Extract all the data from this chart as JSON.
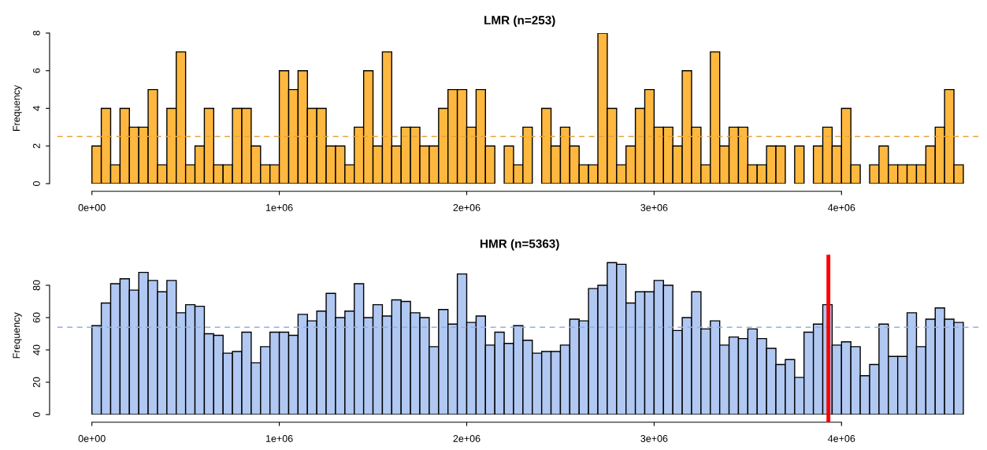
{
  "chart_data": [
    {
      "type": "histogram",
      "title": "LMR (n=253)",
      "ylabel": "Frequency",
      "bins": [
        0,
        50000,
        100000,
        150000,
        200000,
        250000,
        300000,
        350000,
        400000,
        450000,
        500000,
        550000,
        600000,
        650000,
        700000,
        750000,
        800000,
        850000,
        900000,
        950000,
        1000000,
        1050000,
        1100000,
        1150000,
        1200000,
        1250000,
        1300000,
        1350000,
        1400000,
        1450000,
        1500000,
        1550000,
        1600000,
        1650000,
        1700000,
        1750000,
        1800000,
        1850000,
        1900000,
        1950000,
        2000000,
        2050000,
        2100000,
        2150000,
        2200000,
        2250000,
        2300000,
        2350000,
        2400000,
        2450000,
        2500000,
        2550000,
        2600000,
        2650000,
        2700000,
        2750000,
        2800000,
        2850000,
        2900000,
        2950000,
        3000000,
        3050000,
        3100000,
        3150000,
        3200000,
        3250000,
        3300000,
        3350000,
        3400000,
        3450000,
        3500000,
        3550000,
        3600000,
        3650000,
        3700000,
        3750000,
        3800000,
        3850000,
        3900000,
        3950000,
        4000000,
        4050000,
        4100000,
        4150000,
        4200000,
        4250000,
        4300000,
        4350000,
        4400000,
        4450000,
        4500000,
        4550000,
        4600000,
        4650000
      ],
      "values": [
        2,
        4,
        1,
        4,
        3,
        3,
        5,
        1,
        4,
        7,
        1,
        2,
        4,
        1,
        1,
        4,
        4,
        2,
        1,
        1,
        6,
        5,
        6,
        4,
        4,
        2,
        2,
        1,
        3,
        6,
        2,
        7,
        2,
        3,
        3,
        2,
        2,
        4,
        5,
        5,
        3,
        5,
        2,
        0,
        2,
        1,
        3,
        0,
        4,
        2,
        3,
        2,
        1,
        1,
        8,
        4,
        1,
        2,
        4,
        5,
        3,
        3,
        2,
        6,
        3,
        1,
        7,
        2,
        3,
        3,
        1,
        1,
        2,
        2,
        0,
        2,
        0,
        2,
        3,
        2,
        4,
        1,
        0,
        1,
        2,
        1,
        1,
        1,
        1,
        2,
        3,
        5,
        1
      ],
      "color": "#ffb83f",
      "xlim": [
        -185000,
        4750000
      ],
      "xticks": [
        {
          "value": 0,
          "label": "0e+00"
        },
        {
          "value": 1000000,
          "label": "1e+06"
        },
        {
          "value": 2000000,
          "label": "2e+06"
        },
        {
          "value": 3000000,
          "label": "3e+06"
        },
        {
          "value": 4000000,
          "label": "4e+06"
        }
      ],
      "ylim": [
        0,
        8
      ],
      "yticks": [
        0,
        2,
        4,
        6,
        8
      ],
      "ref_lines": [
        {
          "axis": "y",
          "value": 2.5,
          "color": "#e8a33c",
          "line_style": "dashed"
        }
      ]
    },
    {
      "type": "histogram",
      "title": "HMR (n=5363)",
      "ylabel": "Frequency",
      "bins": [
        0,
        50000,
        100000,
        150000,
        200000,
        250000,
        300000,
        350000,
        400000,
        450000,
        500000,
        550000,
        600000,
        650000,
        700000,
        750000,
        800000,
        850000,
        900000,
        950000,
        1000000,
        1050000,
        1100000,
        1150000,
        1200000,
        1250000,
        1300000,
        1350000,
        1400000,
        1450000,
        1500000,
        1550000,
        1600000,
        1650000,
        1700000,
        1750000,
        1800000,
        1850000,
        1900000,
        1950000,
        2000000,
        2050000,
        2100000,
        2150000,
        2200000,
        2250000,
        2300000,
        2350000,
        2400000,
        2450000,
        2500000,
        2550000,
        2600000,
        2650000,
        2700000,
        2750000,
        2800000,
        2850000,
        2900000,
        2950000,
        3000000,
        3050000,
        3100000,
        3150000,
        3200000,
        3250000,
        3300000,
        3350000,
        3400000,
        3450000,
        3500000,
        3550000,
        3600000,
        3650000,
        3700000,
        3750000,
        3800000,
        3850000,
        3900000,
        3950000,
        4000000,
        4050000,
        4100000,
        4150000,
        4200000,
        4250000,
        4300000,
        4350000,
        4400000,
        4450000,
        4500000,
        4550000,
        4600000,
        4650000
      ],
      "values": [
        55,
        69,
        81,
        84,
        77,
        88,
        83,
        76,
        83,
        63,
        68,
        67,
        50,
        49,
        38,
        39,
        51,
        32,
        42,
        51,
        51,
        49,
        62,
        58,
        64,
        75,
        60,
        64,
        81,
        60,
        68,
        61,
        71,
        70,
        63,
        60,
        42,
        65,
        56,
        87,
        57,
        61,
        43,
        51,
        44,
        55,
        46,
        38,
        39,
        39,
        43,
        59,
        58,
        78,
        80,
        94,
        93,
        69,
        76,
        76,
        83,
        80,
        52,
        60,
        76,
        53,
        58,
        43,
        48,
        47,
        53,
        47,
        41,
        31,
        34,
        23,
        51,
        56,
        68,
        43,
        45,
        42,
        24,
        31,
        56,
        36,
        36,
        63,
        42,
        59,
        66,
        59,
        57
      ],
      "color": "#b0c8f2",
      "xlim": [
        -185000,
        4750000
      ],
      "xticks": [
        {
          "value": 0,
          "label": "0e+00"
        },
        {
          "value": 1000000,
          "label": "1e+06"
        },
        {
          "value": 2000000,
          "label": "2e+06"
        },
        {
          "value": 3000000,
          "label": "3e+06"
        },
        {
          "value": 4000000,
          "label": "4e+06"
        }
      ],
      "ylim": [
        0,
        97.76
      ],
      "yticks": [
        0,
        20,
        40,
        60,
        80
      ],
      "ref_lines": [
        {
          "axis": "y",
          "value": 54,
          "color": "#8fb0ea",
          "line_style": "dashed"
        },
        {
          "axis": "x",
          "value": 3930000,
          "color": "#ff0000",
          "line_style": "solid"
        }
      ]
    }
  ]
}
